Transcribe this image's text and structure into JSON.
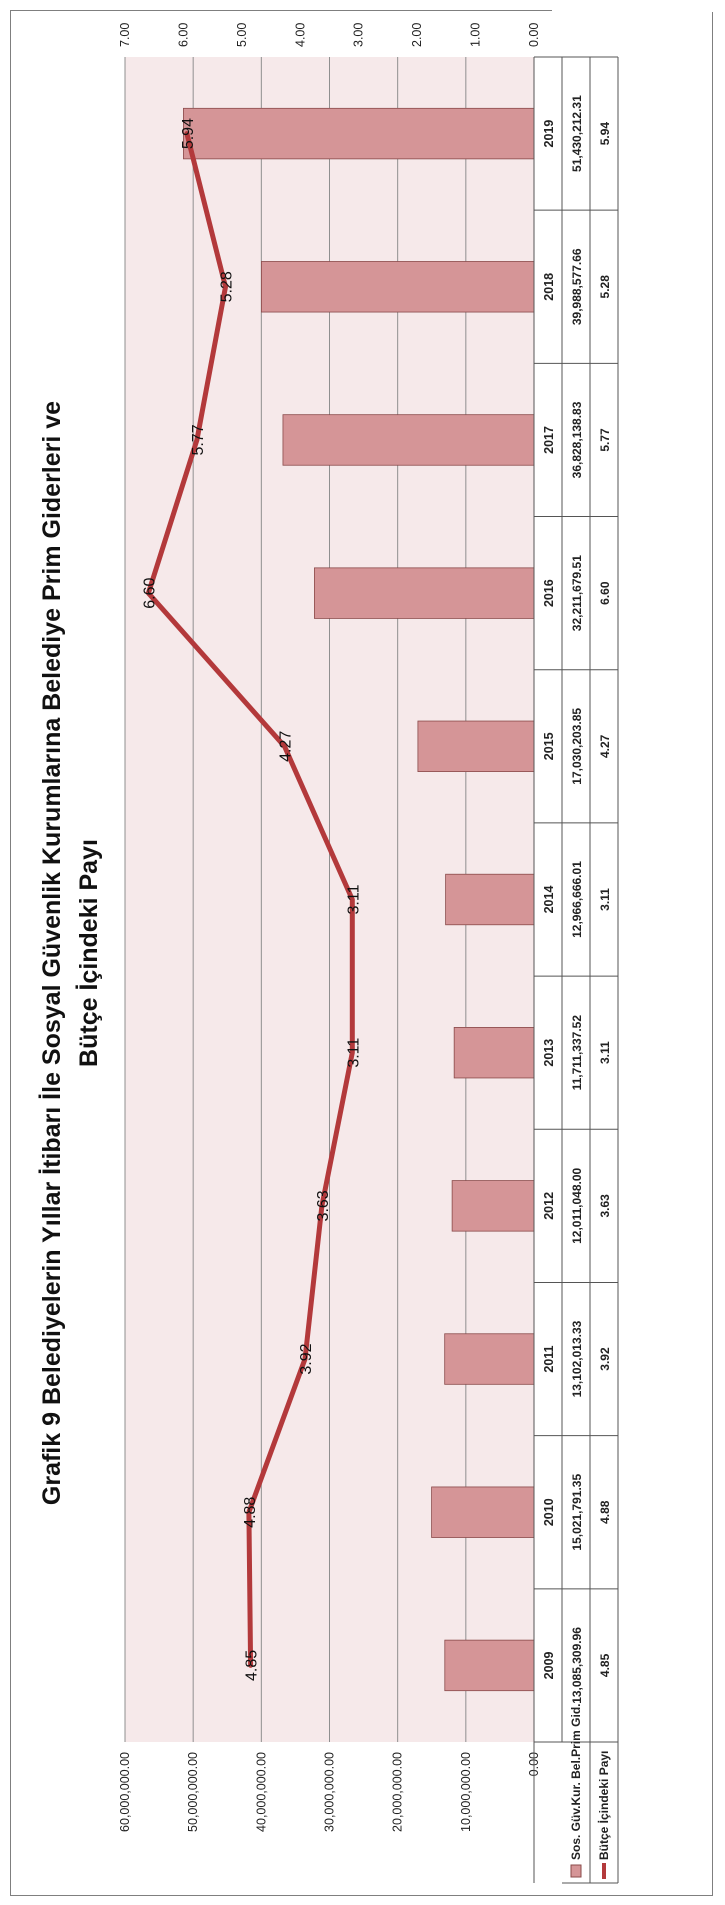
{
  "colors": {
    "bar_fill": "#d59597",
    "bar_stroke": "#8a4a4a",
    "line": "#b3393b",
    "plot_bg": "#f6e9ea",
    "grid": "#8f8f8f"
  },
  "chart_data": {
    "type": "bar",
    "title": "Grafik 9 Belediyelerin Yıllar İtibarı İle Sosyal Güvenlik Kurumlarına Belediye Prim Giderleri ve Bütçe İçindeki Payı",
    "title_lines": [
      "Grafik 9 Belediyelerin Yıllar İtibarı İle Sosyal Güvenlik Kurumlarına Belediye Prim Giderleri ve",
      "Bütçe İçindeki Payı"
    ],
    "categories": [
      "2009",
      "2010",
      "2011",
      "2012",
      "2013",
      "2014",
      "2015",
      "2016",
      "2017",
      "2018",
      "2019"
    ],
    "series": [
      {
        "name": "Sos. Güv.Kur. Bel.Prim Gid.",
        "type": "bar",
        "axis": "primary",
        "values": [
          13085309.96,
          15021791.35,
          13102013.33,
          12011048.0,
          11711337.52,
          12966666.01,
          17030203.85,
          32211679.51,
          36828138.83,
          39988577.66,
          51430212.31
        ],
        "table_labels": [
          "13,085,309.96",
          "15,021,791.35",
          "13,102,013.33",
          "12,011,048.00",
          "11,711,337.52",
          "12,966,666.01",
          "17,030,203.85",
          "32,211,679.51",
          "36,828,138.83",
          "39,988,577.66",
          "51,430,212.31"
        ]
      },
      {
        "name": "Bütçe İçindeki Payı",
        "type": "line",
        "axis": "secondary",
        "values": [
          4.85,
          4.88,
          3.92,
          3.63,
          3.11,
          3.11,
          4.27,
          6.6,
          5.77,
          5.28,
          5.94
        ],
        "labels": [
          "4.85",
          "4.88",
          "3.92",
          "3.63",
          "3.11",
          "3.11",
          "4.27",
          "6.60",
          "5.77",
          "5.28",
          "5.94"
        ]
      }
    ],
    "primary_axis": {
      "range": [
        0,
        60000000
      ],
      "ticks": [
        "0.00",
        "10,000,000.00",
        "20,000,000.00",
        "30,000,000.00",
        "40,000,000.00",
        "50,000,000.00",
        "60,000,000.00"
      ]
    },
    "secondary_axis": {
      "range": [
        0,
        7
      ],
      "ticks": [
        "0.00",
        "1.00",
        "2.00",
        "3.00",
        "4.00",
        "5.00",
        "6.00",
        "7.00"
      ]
    },
    "grid": true,
    "legend": "data table"
  }
}
